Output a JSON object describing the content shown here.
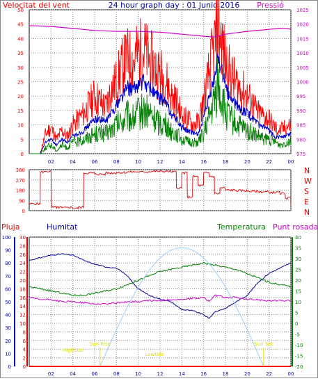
{
  "header": {
    "left_label": "Velocitat del vent",
    "title": "24 hour graph day : 01 Junio 2016",
    "right_label": "Pressió"
  },
  "panel3_labels": {
    "rain": "Pluja",
    "humidity": "Humitat",
    "temperature": "Temperatura",
    "dewpoint": "Punt rosada"
  },
  "colors": {
    "wind_gust": "#ff0000",
    "wind_avg": "#0000cc",
    "wind_low": "#008000",
    "pressure": "#cc00cc",
    "direction": "#dd0000",
    "humidity": "#000099",
    "temperature": "#008000",
    "dewpoint": "#cc00cc",
    "rain": "#ff0000",
    "sun_curve": "#99ccff",
    "annotation": "#dddd00"
  },
  "chart_data": [
    {
      "type": "line",
      "name": "wind_and_pressure",
      "x_ticks": [
        "02",
        "04",
        "06",
        "08",
        "10",
        "12",
        "14",
        "16",
        "18",
        "20",
        "22",
        "00"
      ],
      "y_left_ticks": [
        0,
        5,
        10,
        15,
        20,
        25,
        30,
        35,
        40,
        45,
        50
      ],
      "y_right_ticks": [
        975,
        980,
        985,
        990,
        995,
        1000,
        1005,
        1010,
        1015,
        1020,
        1025
      ],
      "ylim_left": [
        0,
        50
      ],
      "ylim_right": [
        975,
        1025
      ],
      "xlim_hours": [
        0,
        24
      ],
      "grid": true,
      "series": [
        {
          "role": "gust",
          "axis": "left",
          "x": [
            0,
            1,
            1.5,
            2,
            2.5,
            3,
            3.5,
            4,
            4.5,
            5,
            5.5,
            6,
            6.5,
            7,
            7.5,
            8,
            8.5,
            9,
            9.5,
            10,
            10.5,
            11,
            11.5,
            12,
            12.5,
            13,
            13.5,
            14,
            14.5,
            15,
            15.5,
            16,
            16.5,
            17,
            17.3,
            17.6,
            18,
            18.5,
            19,
            19.5,
            20,
            20.5,
            21,
            21.5,
            22,
            22.5,
            23,
            23.5,
            24
          ],
          "values": [
            0,
            0,
            7,
            9,
            5,
            8,
            6,
            10,
            12,
            14,
            17,
            20,
            18,
            16,
            22,
            25,
            30,
            33,
            32,
            35,
            36,
            33,
            30,
            28,
            26,
            20,
            18,
            13,
            12,
            10,
            11,
            18,
            28,
            38,
            44,
            40,
            32,
            27,
            24,
            22,
            20,
            17,
            14,
            13,
            12,
            9,
            8,
            9,
            10
          ]
        },
        {
          "role": "average",
          "axis": "left",
          "x": [
            0,
            1,
            1.5,
            2,
            2.5,
            3,
            3.5,
            4,
            4.5,
            5,
            5.5,
            6,
            6.5,
            7,
            7.5,
            8,
            8.5,
            9,
            9.5,
            10,
            10.5,
            11,
            11.5,
            12,
            12.5,
            13,
            13.5,
            14,
            14.5,
            15,
            15.5,
            16,
            16.5,
            17,
            17.3,
            17.6,
            18,
            18.5,
            19,
            19.5,
            20,
            20.5,
            21,
            21.5,
            22,
            22.5,
            23,
            23.5,
            24
          ],
          "values": [
            0,
            0,
            4,
            5,
            3,
            5,
            4,
            6,
            7,
            8,
            10,
            12,
            12,
            11,
            14,
            17,
            20,
            23,
            22,
            24,
            25,
            23,
            21,
            19,
            18,
            14,
            12,
            9,
            8,
            7,
            7,
            12,
            19,
            26,
            34,
            30,
            23,
            19,
            17,
            15,
            14,
            12,
            10,
            9,
            8,
            6,
            6,
            6,
            7
          ]
        },
        {
          "role": "low",
          "axis": "left",
          "x": [
            0,
            1,
            1.5,
            2,
            2.5,
            3,
            3.5,
            4,
            4.5,
            5,
            5.5,
            6,
            6.5,
            7,
            7.5,
            8,
            8.5,
            9,
            9.5,
            10,
            10.5,
            11,
            11.5,
            12,
            12.5,
            13,
            13.5,
            14,
            14.5,
            15,
            15.5,
            16,
            16.5,
            17,
            17.3,
            17.6,
            18,
            18.5,
            19,
            19.5,
            20,
            20.5,
            21,
            21.5,
            22,
            22.5,
            23,
            23.5,
            24
          ],
          "values": [
            0,
            0,
            2,
            3,
            1,
            3,
            2,
            4,
            4,
            5,
            6,
            7,
            7,
            7,
            8,
            10,
            11,
            13,
            12,
            14,
            15,
            14,
            12,
            11,
            10,
            8,
            7,
            5,
            4,
            4,
            4,
            7,
            12,
            18,
            25,
            20,
            14,
            12,
            10,
            9,
            8,
            7,
            6,
            5,
            5,
            4,
            3,
            4,
            5
          ]
        },
        {
          "role": "pressure",
          "axis": "right",
          "x": [
            0,
            2,
            4,
            6,
            8,
            10,
            12,
            14,
            16,
            17,
            18,
            20,
            22,
            23,
            24
          ],
          "values": [
            1019.5,
            1019.2,
            1018.5,
            1017.8,
            1017.5,
            1017.5,
            1017.2,
            1016.5,
            1015.8,
            1015.5,
            1016.5,
            1017.5,
            1018.2,
            1018.5,
            1018.3
          ]
        }
      ]
    },
    {
      "type": "line",
      "name": "wind_direction",
      "y_labels": [
        "N",
        "W",
        "S",
        "E",
        "N"
      ],
      "y_ticks": [
        0,
        90,
        180,
        270,
        360
      ],
      "ylim": [
        0,
        360
      ],
      "xlim_hours": [
        0,
        24
      ],
      "grid": true,
      "series": [
        {
          "role": "direction",
          "x": [
            0,
            1,
            1.02,
            1.5,
            2,
            2.05,
            2.5,
            2.55,
            3,
            3.5,
            4,
            4.5,
            5,
            5.5,
            6,
            7,
            8,
            9,
            10,
            11,
            12,
            13,
            13.5,
            14,
            14.5,
            15,
            15.5,
            16,
            16.5,
            17,
            17.5,
            18,
            19,
            20,
            21,
            22,
            23,
            23.5,
            24
          ],
          "values": [
            60,
            60,
            340,
            345,
            340,
            30,
            20,
            30,
            25,
            30,
            20,
            30,
            330,
            330,
            320,
            330,
            335,
            340,
            340,
            345,
            345,
            340,
            200,
            330,
            120,
            300,
            220,
            330,
            300,
            150,
            200,
            180,
            175,
            170,
            165,
            160,
            150,
            110,
            40
          ]
        }
      ]
    },
    {
      "type": "line",
      "name": "humidity_temperature_dewpoint_rain",
      "x_ticks": [
        "02",
        "04",
        "06",
        "08",
        "10",
        "12",
        "14",
        "16",
        "18",
        "20",
        "22",
        "00"
      ],
      "y_rain_ticks": [
        0,
        2,
        4,
        6,
        8,
        10,
        12,
        14,
        16,
        18,
        20,
        22,
        24,
        26,
        28,
        30
      ],
      "y_humidity_ticks": [
        0,
        10,
        20,
        30,
        40,
        50,
        60,
        70,
        80,
        90,
        100
      ],
      "y_temp_ticks": [
        -20,
        -15,
        -10,
        -5,
        0,
        5,
        10,
        15,
        20,
        25,
        30,
        35,
        40
      ],
      "ylim_humidity": [
        0,
        100
      ],
      "ylim_temp": [
        -20,
        40
      ],
      "ylim_rain": [
        0,
        30
      ],
      "xlim_hours": [
        0,
        24
      ],
      "grid": true,
      "series": [
        {
          "role": "humidity",
          "axis": "humidity",
          "x": [
            0,
            1,
            2,
            3,
            4,
            5,
            6,
            7,
            8,
            9,
            10,
            11,
            12,
            13,
            14,
            15,
            16,
            16.5,
            17,
            18,
            19,
            20,
            21,
            22,
            23,
            24
          ],
          "values": [
            82,
            84,
            86,
            87,
            86,
            82,
            79,
            77,
            76,
            70,
            60,
            55,
            52,
            50,
            44,
            43,
            40,
            37,
            42,
            45,
            50,
            55,
            65,
            72,
            76,
            80
          ]
        },
        {
          "role": "temperature",
          "axis": "temp",
          "x": [
            0,
            1,
            2,
            3,
            4,
            5,
            6,
            7,
            8,
            9,
            10,
            11,
            12,
            13,
            14,
            15,
            16,
            17,
            18,
            19,
            20,
            21,
            22,
            23,
            24
          ],
          "values": [
            17,
            16,
            15,
            14,
            13,
            13,
            14,
            15,
            16,
            18,
            20,
            22,
            24,
            25,
            26,
            27,
            28,
            27,
            26,
            25,
            23,
            21,
            19,
            18,
            17
          ]
        },
        {
          "role": "dewpoint",
          "axis": "temp",
          "x": [
            0,
            1,
            2,
            3,
            4,
            5,
            6,
            7,
            8,
            9,
            10,
            11,
            12,
            13,
            14,
            15,
            16,
            16.5,
            17,
            18,
            19,
            20,
            21,
            22,
            23,
            24
          ],
          "values": [
            12,
            11,
            11,
            10,
            10,
            9.5,
            9,
            9,
            9.5,
            10,
            10,
            10.5,
            10.5,
            11,
            11,
            11.5,
            12,
            10,
            13,
            12,
            12,
            11,
            11,
            10.5,
            10.5,
            10.5
          ]
        },
        {
          "role": "sun",
          "axis": "temp",
          "x": [
            6.5,
            8,
            10,
            12,
            14,
            16,
            18,
            20,
            21.5
          ],
          "values": [
            -20,
            -8,
            13,
            29,
            35,
            29,
            13,
            -8,
            -20
          ]
        },
        {
          "role": "rain",
          "axis": "rain",
          "x": [
            0,
            24
          ],
          "values": [
            0,
            0
          ]
        }
      ],
      "annotations": [
        {
          "text": "Sun Rise",
          "hour": 6.5
        },
        {
          "text": "Sun Set",
          "hour": 21.5
        },
        {
          "text": "Lowtide",
          "hour": 11.5
        },
        {
          "text": "Hightide",
          "hour": 4.0
        }
      ]
    }
  ]
}
